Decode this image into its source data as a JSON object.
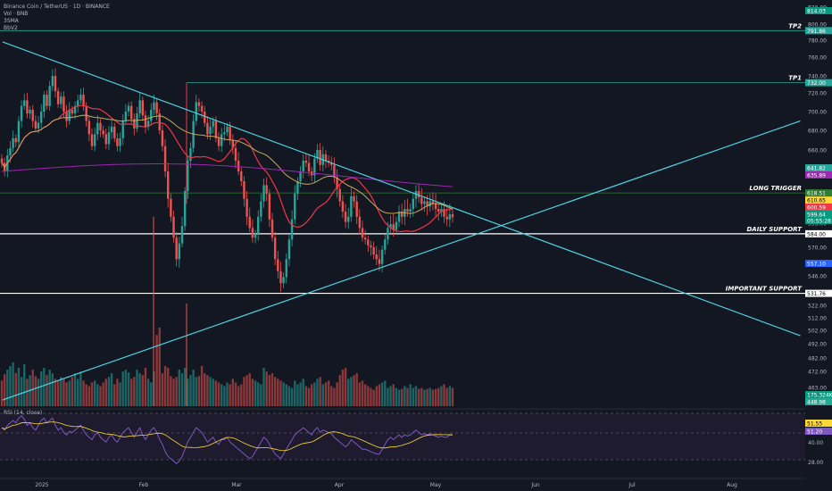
{
  "legend": {
    "title": "Binance Coin / TetherUS · 1D · BINANCE",
    "line2": "Vol · BNB",
    "line3": "3SMA",
    "line4": "BbV2"
  },
  "rsi_label": "RSI (14, close)",
  "chart_data": {
    "type": "line",
    "price_axis": {
      "ticks": [
        820.0,
        800.0,
        780.0,
        760.0,
        740.0,
        720.0,
        700.0,
        680.0,
        660.0,
        640.0,
        620.0,
        595.0,
        570.0,
        546.0,
        522.0,
        512.0,
        502.0,
        492.0,
        482.0,
        472.0,
        463.0,
        454.0
      ],
      "labels": [
        "820.00",
        "800.00",
        "780.00",
        "760.00",
        "740.00",
        "720.00",
        "700.00",
        "680.00",
        "660.00",
        "640.00",
        "620.00",
        "595.00",
        "570.00",
        "546.00",
        "522.00",
        "512.00",
        "502.00",
        "492.00",
        "482.00",
        "472.00",
        "463.00",
        "454.00"
      ]
    },
    "rsi_axis": {
      "ticks": [
        40.0,
        28.0
      ],
      "labels": [
        "40.00",
        "28.00"
      ]
    },
    "time_axis": [
      "2025",
      "Feb",
      "Mar",
      "Apr",
      "May",
      "Jun",
      "Jul",
      "Aug"
    ],
    "levels": [
      {
        "name": "TP2",
        "price": 791.86,
        "label": "791.86",
        "color": "#26a69a"
      },
      {
        "name": "TP1",
        "price": 732.0,
        "label": "732.00",
        "color": "#26a69a"
      },
      {
        "name": "LONG TRIGGER",
        "price": 618.51,
        "label": "618.51",
        "color": "#2e7d32"
      },
      {
        "name": "DAILY SUPPORT",
        "price": 584.0,
        "label": "584.00",
        "color": "#ffffff"
      },
      {
        "name": "IMPORTANT SUPPORT",
        "price": 531.76,
        "label": "531.76",
        "color": "#ffffff"
      }
    ],
    "price_tags": [
      {
        "label": "814.03",
        "bg": "#089981"
      },
      {
        "label": "641.82",
        "bg": "#26a69a"
      },
      {
        "label": "635.89",
        "bg": "#9c27b0"
      },
      {
        "label": "610.65",
        "bg": "#fdd835",
        "fg": "#000000"
      },
      {
        "label": "600.59",
        "bg": "#f23645"
      },
      {
        "label": "599.64",
        "bg": "#089981"
      },
      {
        "label": "05:55:28",
        "bg": "#089981"
      },
      {
        "label": "557.10",
        "bg": "#2962ff"
      },
      {
        "label": "175.324K",
        "bg": "#089981"
      },
      {
        "label": "448.98",
        "bg": "#22ab94"
      }
    ],
    "rsi_tags": [
      {
        "label": "51.55",
        "bg": "#fdd835",
        "fg": "#000000"
      },
      {
        "label": "51.20",
        "bg": "#7e57c2"
      }
    ],
    "trendlines": [
      {
        "name": "descending",
        "p1": [
          "2024-12-20",
          778
        ],
        "p2": [
          "2025-08-20",
          498
        ],
        "color": "#4dd0e1"
      },
      {
        "name": "ascending",
        "p1": [
          "2024-12-20",
          454
        ],
        "p2": [
          "2025-08-20",
          690
        ],
        "color": "#4dd0e1"
      }
    ],
    "candles_summary": {
      "last_close": 599.64,
      "closes": [
        648,
        640,
        655,
        662,
        672,
        668,
        690,
        706,
        712,
        698,
        702,
        690,
        682,
        688,
        700,
        718,
        706,
        728,
        740,
        722,
        708,
        716,
        700,
        690,
        702,
        698,
        706,
        712,
        718,
        706,
        690,
        676,
        664,
        676,
        688,
        680,
        676,
        666,
        678,
        684,
        672,
        664,
        672,
        690,
        700,
        706,
        692,
        682,
        698,
        712,
        696,
        684,
        690,
        702,
        710,
        698,
        680,
        664,
        640,
        614,
        600,
        580,
        560,
        574,
        592,
        620,
        650,
        662,
        690,
        710,
        706,
        700,
        688,
        676,
        684,
        690,
        672,
        664,
        676,
        678,
        684,
        670,
        662,
        650,
        640,
        630,
        614,
        600,
        590,
        580,
        584,
        600,
        612,
        626,
        618,
        598,
        580,
        560,
        550,
        540,
        545,
        560,
        578,
        598,
        618,
        630,
        640,
        650,
        648,
        640,
        636,
        652,
        660,
        646,
        656,
        650,
        648,
        646,
        634,
        622,
        612,
        604,
        596,
        600,
        616,
        612,
        600,
        590,
        580,
        578,
        572,
        570,
        564,
        560,
        556,
        568,
        578,
        590,
        594,
        588,
        596,
        604,
        600,
        606,
        604,
        606,
        614,
        620,
        615,
        610,
        612,
        608,
        612,
        610,
        606,
        604,
        606,
        600,
        598,
        602,
        599.64
      ],
      "volume": [
        140,
        175,
        200,
        220,
        240,
        182,
        210,
        160,
        230,
        150,
        170,
        200,
        165,
        150,
        190,
        210,
        170,
        200,
        180,
        150,
        140,
        160,
        150,
        130,
        140,
        160,
        180,
        150,
        190,
        140,
        120,
        110,
        130,
        140,
        120,
        110,
        130,
        150,
        160,
        180,
        120,
        150,
        130,
        190,
        200,
        185,
        150,
        160,
        200,
        180,
        170,
        210,
        150,
        130,
        190,
        390,
        430,
        180,
        220,
        210,
        165,
        150,
        160,
        200,
        180,
        210,
        150,
        170,
        200,
        160,
        165,
        220,
        180,
        170,
        160,
        150,
        140,
        130,
        120,
        110,
        130,
        120,
        150,
        130,
        110,
        120,
        160,
        170,
        180,
        150,
        140,
        130,
        120,
        210,
        190,
        170,
        180,
        160,
        150,
        140,
        130,
        120,
        110,
        100,
        140,
        120,
        130,
        150,
        110,
        100,
        120,
        130,
        150,
        160,
        120,
        130,
        140,
        110,
        100,
        130,
        170,
        200,
        210,
        150,
        160,
        170,
        180,
        130,
        140,
        120,
        110,
        100,
        90,
        110,
        120,
        130,
        140,
        100,
        110,
        120,
        100,
        90,
        95,
        110,
        100,
        120,
        100,
        110,
        95,
        100,
        90,
        95,
        100,
        90,
        95,
        100,
        110,
        120,
        100,
        110,
        100
      ],
      "rsi": [
        58,
        56,
        60,
        62,
        64,
        62,
        66,
        68,
        65,
        60,
        62,
        58,
        56,
        60,
        64,
        66,
        62,
        64,
        66,
        60,
        56,
        58,
        54,
        52,
        55,
        54,
        56,
        58,
        60,
        56,
        52,
        50,
        48,
        52,
        54,
        50,
        48,
        46,
        50,
        52,
        48,
        46,
        50,
        54,
        56,
        58,
        54,
        50,
        54,
        58,
        52,
        48,
        52,
        56,
        58,
        54,
        48,
        44,
        38,
        34,
        32,
        30,
        28,
        30,
        34,
        40,
        46,
        50,
        54,
        58,
        56,
        54,
        50,
        46,
        48,
        50,
        46,
        44,
        48,
        48,
        50,
        46,
        44,
        42,
        40,
        38,
        36,
        34,
        32,
        34,
        38,
        42,
        46,
        50,
        48,
        44,
        40,
        36,
        34,
        32,
        36,
        40,
        44,
        48,
        52,
        54,
        56,
        58,
        56,
        54,
        52,
        56,
        58,
        54,
        56,
        55,
        54,
        53,
        50,
        48,
        46,
        44,
        42,
        44,
        48,
        46,
        44,
        42,
        40,
        40,
        39,
        38,
        37,
        36,
        36,
        40,
        44,
        48,
        50,
        48,
        50,
        52,
        50,
        52,
        51,
        52,
        54,
        56,
        54,
        52,
        53,
        52,
        53,
        52,
        51,
        50,
        51,
        50,
        50,
        52,
        51.55
      ]
    }
  }
}
